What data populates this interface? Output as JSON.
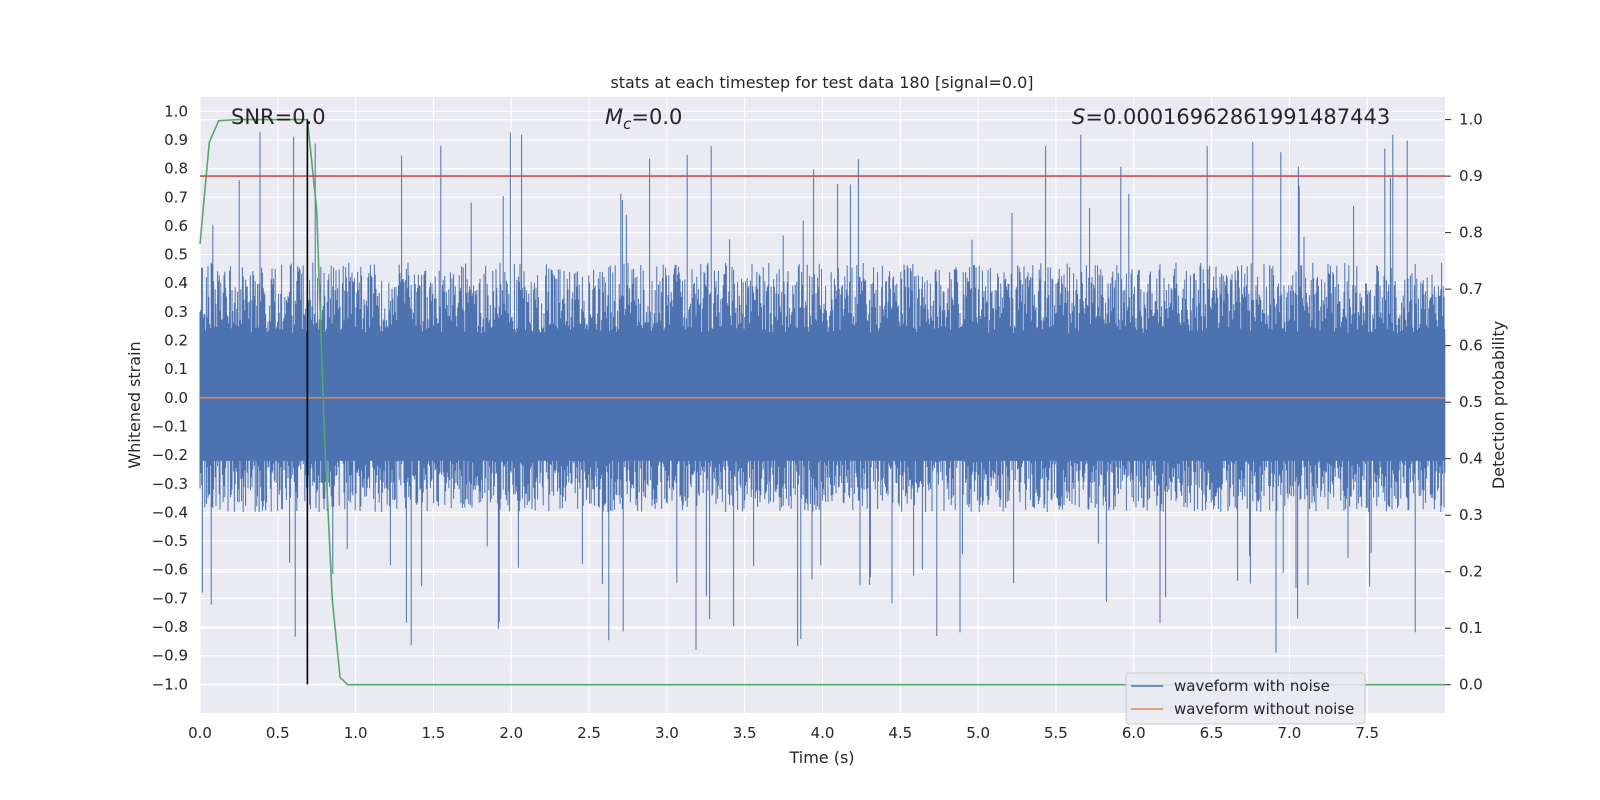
{
  "chart_data": {
    "type": "line",
    "title": "stats at each timestep for test data 180 [signal=0.0]",
    "xlabel": "Time (s)",
    "ylabel": "Whitened strain",
    "y2label": "Detection probability",
    "xlim": [
      0.0,
      8.0
    ],
    "ylim": [
      -1.1,
      1.05
    ],
    "y2lim": [
      -0.05,
      1.04
    ],
    "x_ticks": [
      "0.0",
      "0.5",
      "1.0",
      "1.5",
      "2.0",
      "2.5",
      "3.0",
      "3.5",
      "4.0",
      "4.5",
      "5.0",
      "5.5",
      "6.0",
      "6.5",
      "7.0",
      "7.5"
    ],
    "y_ticks": [
      "1.0",
      "0.9",
      "0.8",
      "0.7",
      "0.6",
      "0.5",
      "0.4",
      "0.3",
      "0.2",
      "0.1",
      "0.0",
      "−0.1",
      "−0.2",
      "−0.3",
      "−0.4",
      "−0.5",
      "−0.6",
      "−0.7",
      "−0.8",
      "−0.9",
      "−1.0"
    ],
    "y2_ticks": [
      "1.0",
      "0.9",
      "0.8",
      "0.7",
      "0.6",
      "0.5",
      "0.4",
      "0.3",
      "0.2",
      "0.1",
      "0.0"
    ],
    "grid": true,
    "annotations": {
      "snr": "SNR=0.0",
      "mc_symbol": "M",
      "mc_sub": "c",
      "mc_value": "=0.0",
      "s_symbol": "S",
      "s_value": "=0.00016962861991487443"
    },
    "threshold_probability": 0.9,
    "marker_time": 0.69,
    "series": [
      {
        "name": "waveform with noise",
        "color": "#4c72b0",
        "axis": "left",
        "note": "dense noise, samples spanning approx -0.9 to 0.93",
        "envelope": {
          "upper_typical": 0.45,
          "lower_typical": -0.38,
          "max": 0.93,
          "min": -0.9
        }
      },
      {
        "name": "waveform without noise",
        "color": "#dd8452",
        "axis": "left",
        "x": [
          0.0,
          8.0
        ],
        "y": [
          0.0,
          0.0
        ]
      },
      {
        "color": "#55a868",
        "axis": "right",
        "x": [
          0.0,
          0.06,
          0.12,
          0.25,
          0.4,
          0.55,
          0.69,
          0.75,
          0.8,
          0.85,
          0.9,
          0.95,
          1.0,
          1.5,
          2.0,
          3.0,
          4.0,
          5.0,
          6.0,
          7.0,
          8.0
        ],
        "y": [
          0.78,
          0.96,
          0.998,
          1.0,
          1.0,
          1.0,
          1.0,
          0.84,
          0.44,
          0.15,
          0.013,
          0.0,
          0.0,
          0.0,
          0.0,
          0.0,
          0.0,
          0.0,
          0.0,
          0.0,
          0.0
        ]
      },
      {
        "color": "#c44e52",
        "axis": "right",
        "x": [
          0.0,
          8.0
        ],
        "y": [
          0.9,
          0.9
        ]
      }
    ],
    "legend": {
      "position": "bottom-right",
      "entries": [
        "waveform with noise",
        "waveform without noise"
      ]
    }
  }
}
